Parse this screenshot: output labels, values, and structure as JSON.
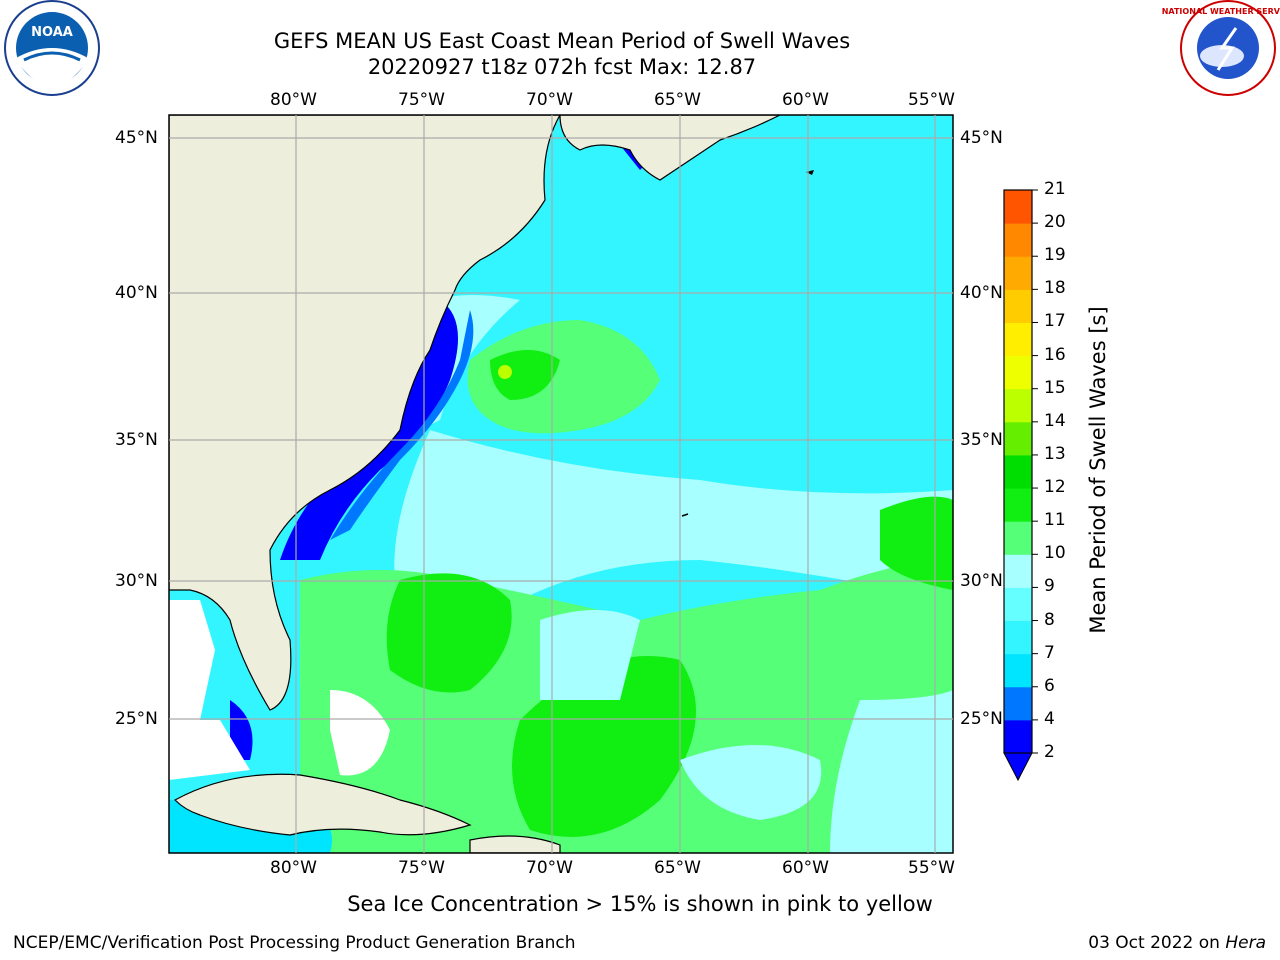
{
  "title_line1": "GEFS MEAN US East Coast Mean Period of Swell Waves",
  "title_line2": "20220927 t18z 072h fcst   Max: 12.87",
  "lon_labels": [
    "80°W",
    "75°W",
    "70°W",
    "65°W",
    "60°W",
    "55°W"
  ],
  "lat_labels": [
    "45°N",
    "40°N",
    "35°N",
    "30°N",
    "25°N"
  ],
  "colorbar": {
    "label": "Mean Period of Swell Waves [s]",
    "ticks": [
      "2",
      "4",
      "6",
      "7",
      "8",
      "9",
      "10",
      "11",
      "12",
      "13",
      "14",
      "15",
      "16",
      "17",
      "18",
      "19",
      "20",
      "21"
    ],
    "colors": [
      "#0000ff",
      "#0077ff",
      "#00e5ff",
      "#33f5ff",
      "#66ffff",
      "#a8ffff",
      "#55ff77",
      "#11ee11",
      "#00dd00",
      "#66ee00",
      "#bbff00",
      "#eeff00",
      "#ffee00",
      "#ffcc00",
      "#ffaa00",
      "#ff8800",
      "#ff5500",
      "#ff2200",
      "#ff0000"
    ]
  },
  "caption": "Sea Ice Concentration > 15% is shown in pink to yellow",
  "footer_left": "NCEP/EMC/Verification Post Processing Product Generation Branch",
  "footer_date": "03 Oct 2022 on",
  "footer_machine": "Hera",
  "logos": {
    "left": "NOAA",
    "right": "NATIONAL WEATHER SERVICE"
  }
}
